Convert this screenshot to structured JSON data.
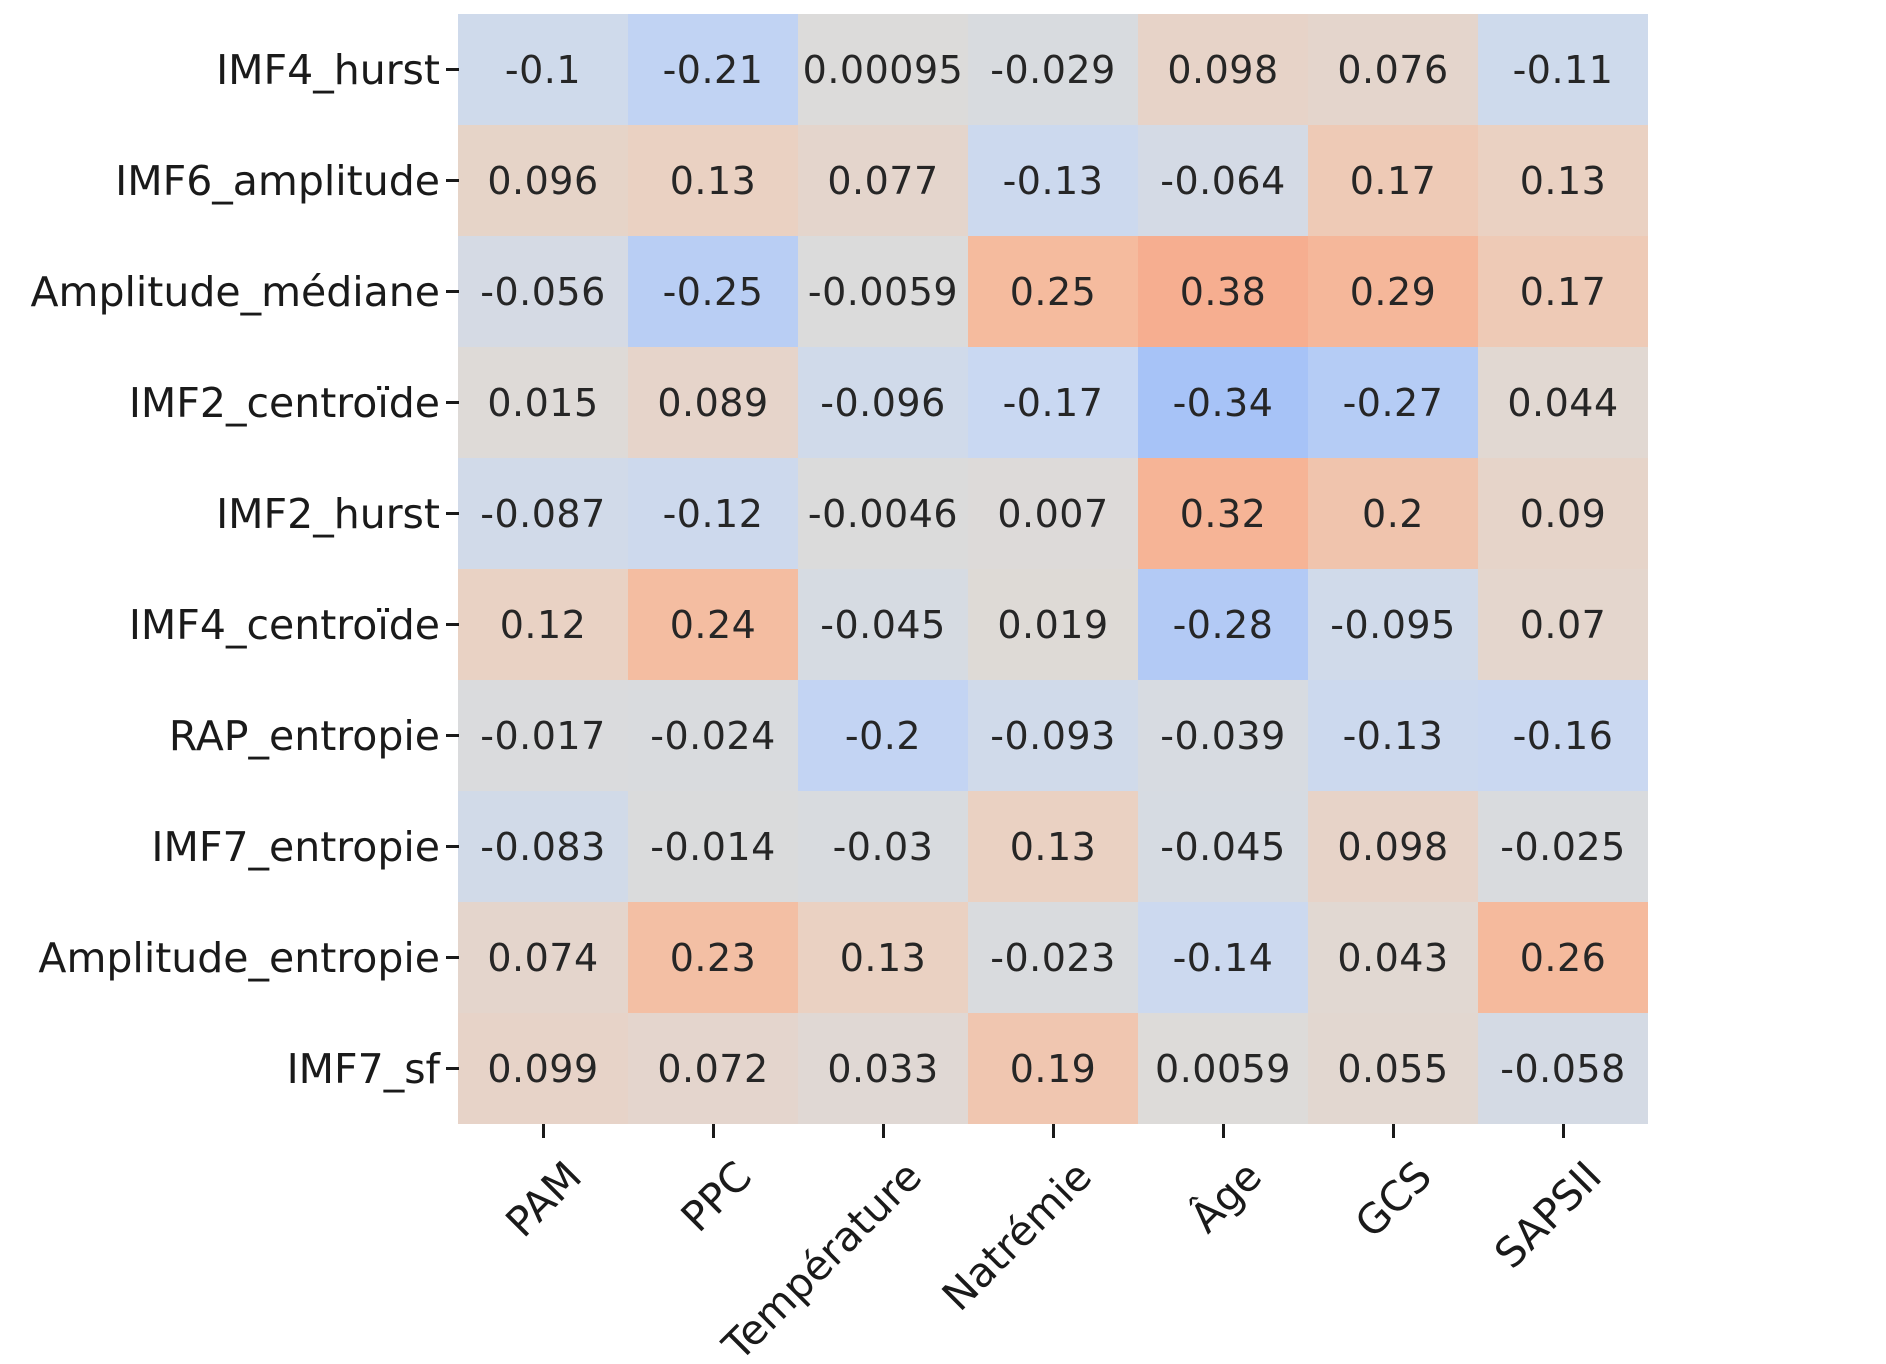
{
  "figure": {
    "background": "#ffffff",
    "tick_color": "#1a1a1a",
    "annotation_text_color": "#262626"
  },
  "chart_data": {
    "type": "heatmap",
    "title": "",
    "xlabel": "",
    "ylabel": "",
    "legend": false,
    "grid": false,
    "columns": [
      "PAM",
      "PPC",
      "Température",
      "Natrémie",
      "Âge",
      "GCS",
      "SAPSII"
    ],
    "rows": [
      "IMF4_hurst",
      "IMF6_amplitude",
      "Amplitude_médiane",
      "IMF2_centroïde",
      "IMF2_hurst",
      "IMF4_centroïde",
      "RAP_entropie",
      "IMF7_entropie",
      "Amplitude_entropie",
      "IMF7_sf"
    ],
    "values": [
      [
        -0.1,
        -0.21,
        0.00095,
        -0.029,
        0.098,
        0.076,
        -0.11
      ],
      [
        0.096,
        0.13,
        0.077,
        -0.13,
        -0.064,
        0.17,
        0.13
      ],
      [
        -0.056,
        -0.25,
        -0.0059,
        0.25,
        0.38,
        0.29,
        0.17
      ],
      [
        0.015,
        0.089,
        -0.096,
        -0.17,
        -0.34,
        -0.27,
        0.044
      ],
      [
        -0.087,
        -0.12,
        -0.0046,
        0.007,
        0.32,
        0.2,
        0.09
      ],
      [
        0.12,
        0.24,
        -0.045,
        0.019,
        -0.28,
        -0.095,
        0.07
      ],
      [
        -0.017,
        -0.024,
        -0.2,
        -0.093,
        -0.039,
        -0.13,
        -0.16
      ],
      [
        -0.083,
        -0.014,
        -0.03,
        0.13,
        -0.045,
        0.098,
        -0.025
      ],
      [
        0.074,
        0.23,
        0.13,
        -0.023,
        -0.14,
        0.043,
        0.26
      ],
      [
        0.099,
        0.072,
        0.033,
        0.19,
        0.0059,
        0.055,
        -0.058
      ]
    ],
    "colormap": {
      "name": "coolwarm-muted",
      "stops": [
        {
          "v": -0.34,
          "color": "#a7c3f7"
        },
        {
          "v": -0.17,
          "color": "#c9d8f2"
        },
        {
          "v": -0.1,
          "color": "#cfdaeb"
        },
        {
          "v": 0.0,
          "color": "#dcdbda"
        },
        {
          "v": 0.13,
          "color": "#ead1c2"
        },
        {
          "v": 0.25,
          "color": "#f5bb9e"
        },
        {
          "v": 0.38,
          "color": "#f6ae90"
        }
      ]
    }
  }
}
